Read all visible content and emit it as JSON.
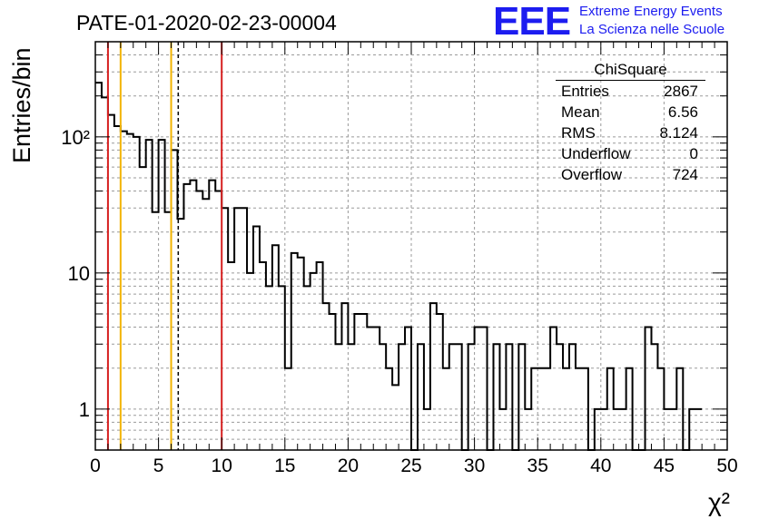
{
  "header": {
    "run_title": "PATE-01-2020-02-23-00004",
    "logo_text": "EEE",
    "logo_line1": "Extreme Energy Events",
    "logo_line2": "La Scienza nelle Scuole",
    "brand_color": "#1c1cf0"
  },
  "stats_box": {
    "title": "ChiSquare",
    "rows": [
      {
        "label": "Entries",
        "value": "2867"
      },
      {
        "label": "Mean",
        "value": "6.56"
      },
      {
        "label": "RMS",
        "value": "8.124"
      },
      {
        "label": "Underflow",
        "value": "0"
      },
      {
        "label": "Overflow",
        "value": "724"
      }
    ]
  },
  "chart_data": {
    "type": "histogram",
    "xlabel": "χ²",
    "ylabel": "Entries/bin",
    "xlim": [
      0,
      50
    ],
    "ylim": [
      0.5,
      500
    ],
    "y_scale": "log",
    "grid": true,
    "bin_width": 0.5,
    "x_ticks": [
      0,
      5,
      10,
      15,
      20,
      25,
      30,
      35,
      40,
      45,
      50
    ],
    "x_tick_labels": [
      "0",
      "5",
      "10",
      "15",
      "20",
      "25",
      "30",
      "35",
      "40",
      "45",
      "50"
    ],
    "y_tick_labels": [
      {
        "value": 1,
        "label": "1"
      },
      {
        "value": 10,
        "label": "10"
      },
      {
        "value": 100,
        "label": "10²"
      }
    ],
    "bin_values": [
      250,
      195,
      145,
      120,
      110,
      105,
      100,
      60,
      95,
      28,
      95,
      28,
      80,
      25,
      45,
      48,
      40,
      35,
      48,
      40,
      30,
      12,
      30,
      30,
      10,
      22,
      12,
      8,
      16,
      8,
      2,
      14,
      13,
      8,
      10,
      12,
      6,
      5,
      3,
      6,
      3,
      5,
      5,
      4,
      4,
      3,
      2,
      1.5,
      3,
      4,
      0,
      3,
      1,
      6,
      5,
      2,
      3,
      3,
      0.5,
      3,
      4,
      4,
      0.5,
      3,
      1,
      3,
      0.5,
      3,
      1,
      2,
      2,
      2,
      4,
      3,
      2,
      3,
      2,
      2,
      0.5,
      1,
      1,
      2,
      1,
      1,
      2,
      0,
      0,
      4,
      3,
      2,
      1,
      1,
      2,
      0,
      1,
      1
    ],
    "reference_lines": [
      {
        "x": 1,
        "color": "#d62020",
        "style": "solid"
      },
      {
        "x": 2,
        "color": "#f2b400",
        "style": "solid"
      },
      {
        "x": 6,
        "color": "#f2b400",
        "style": "solid"
      },
      {
        "x": 6.56,
        "color": "#000000",
        "style": "dashed"
      },
      {
        "x": 10,
        "color": "#d62020",
        "style": "solid"
      }
    ]
  }
}
